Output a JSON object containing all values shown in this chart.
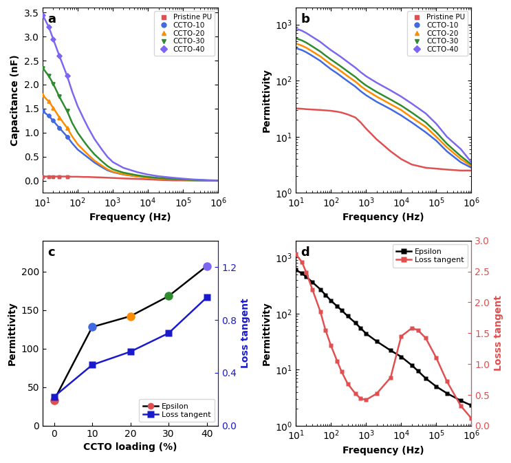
{
  "fig_width": 7.43,
  "fig_height": 6.73,
  "colors": {
    "pristine_pu": "#e05050",
    "ccto10": "#4169e1",
    "ccto20": "#ff8c00",
    "ccto30": "#2e8b2e",
    "ccto40": "#7b68ee",
    "epsilon_line": "#000000",
    "loss_tangent_c": "#1a1acd",
    "loss_tangent_d": "#e05050"
  },
  "panel_a": {
    "xlabel": "Frequency (Hz)",
    "ylabel": "Capacitance (nF)",
    "xlim": [
      10,
      1000000
    ],
    "ylim": [
      -0.25,
      3.6
    ],
    "freq": [
      10,
      15,
      20,
      30,
      50,
      70,
      100,
      150,
      200,
      300,
      500,
      700,
      1000,
      2000,
      5000,
      10000,
      20000,
      50000,
      100000,
      200000,
      500000,
      1000000
    ],
    "pristine_pu": [
      0.09,
      0.09,
      0.09,
      0.09,
      0.09,
      0.085,
      0.085,
      0.08,
      0.08,
      0.075,
      0.07,
      0.065,
      0.06,
      0.05,
      0.04,
      0.03,
      0.02,
      0.01,
      0.008,
      0.005,
      0.003,
      0.002
    ],
    "ccto10": [
      1.45,
      1.35,
      1.25,
      1.1,
      0.92,
      0.78,
      0.65,
      0.55,
      0.48,
      0.38,
      0.28,
      0.22,
      0.18,
      0.13,
      0.09,
      0.07,
      0.05,
      0.035,
      0.025,
      0.015,
      0.008,
      0.005
    ],
    "ccto20": [
      1.78,
      1.65,
      1.52,
      1.32,
      1.1,
      0.92,
      0.76,
      0.63,
      0.54,
      0.42,
      0.31,
      0.24,
      0.19,
      0.135,
      0.09,
      0.065,
      0.048,
      0.032,
      0.022,
      0.013,
      0.007,
      0.004
    ],
    "ccto30": [
      2.35,
      2.18,
      2.02,
      1.75,
      1.45,
      1.2,
      1.0,
      0.82,
      0.7,
      0.55,
      0.4,
      0.31,
      0.24,
      0.17,
      0.115,
      0.082,
      0.06,
      0.04,
      0.028,
      0.017,
      0.009,
      0.005
    ],
    "ccto40": [
      3.45,
      3.2,
      2.95,
      2.6,
      2.18,
      1.85,
      1.55,
      1.28,
      1.1,
      0.87,
      0.64,
      0.5,
      0.39,
      0.27,
      0.18,
      0.13,
      0.095,
      0.065,
      0.045,
      0.028,
      0.015,
      0.008
    ]
  },
  "panel_b": {
    "xlabel": "Frequency (Hz)",
    "ylabel": "Permittivity",
    "xlim": [
      10,
      1000000
    ],
    "ylim": [
      1.0,
      2000
    ],
    "freq": [
      10,
      15,
      20,
      30,
      50,
      70,
      100,
      150,
      200,
      300,
      500,
      700,
      1000,
      2000,
      5000,
      10000,
      20000,
      50000,
      100000,
      200000,
      500000,
      1000000
    ],
    "pristine_pu": [
      32,
      31.5,
      31,
      30.5,
      30,
      29.5,
      29,
      28,
      27,
      25,
      22,
      18,
      14,
      9,
      5.5,
      4.0,
      3.2,
      2.8,
      2.7,
      2.6,
      2.5,
      2.5
    ],
    "ccto10": [
      380,
      350,
      320,
      275,
      225,
      190,
      160,
      135,
      118,
      98,
      78,
      65,
      55,
      42,
      31,
      24,
      18,
      12,
      8.5,
      5.5,
      3.5,
      2.8
    ],
    "ccto20": [
      460,
      420,
      385,
      330,
      270,
      230,
      195,
      165,
      145,
      120,
      96,
      80,
      68,
      52,
      38,
      30,
      22,
      15,
      10,
      6.5,
      4.0,
      3.0
    ],
    "ccto30": [
      570,
      520,
      475,
      405,
      330,
      280,
      238,
      200,
      176,
      146,
      116,
      97,
      82,
      63,
      46,
      36,
      27,
      18,
      12,
      7.5,
      4.5,
      3.2
    ],
    "ccto40": [
      850,
      775,
      705,
      600,
      490,
      415,
      350,
      295,
      260,
      215,
      170,
      142,
      120,
      92,
      67,
      52,
      39,
      26,
      17,
      10,
      6.0,
      3.5
    ]
  },
  "panel_c": {
    "xlabel": "CCTO loading (%)",
    "ylabel": "Permittivity",
    "ylabel2": "Loss tangent",
    "x": [
      0,
      10,
      20,
      30,
      40
    ],
    "epsilon": [
      33,
      128,
      142,
      168,
      207
    ],
    "loss_tangent": [
      0.22,
      0.46,
      0.56,
      0.7,
      0.97
    ],
    "ep_colors": [
      "#e05050",
      "#4169e1",
      "#ff8c00",
      "#2e8b2e",
      "#7b68ee"
    ],
    "ylim_left": [
      0,
      240
    ],
    "ylim_right": [
      0.0,
      1.4
    ],
    "yticks_left": [
      0,
      50,
      100,
      150,
      200
    ],
    "yticks_right": [
      0.0,
      0.4,
      0.8,
      1.2
    ]
  },
  "panel_d": {
    "xlabel": "Frequency (Hz)",
    "ylabel": "Permittivity",
    "ylabel2": "Losss tangent",
    "xlim": [
      10,
      1000000
    ],
    "ylim_left": [
      1.0,
      2000
    ],
    "ylim_right": [
      0.0,
      3.0
    ],
    "freq": [
      10,
      15,
      20,
      30,
      50,
      70,
      100,
      150,
      200,
      300,
      500,
      700,
      1000,
      2000,
      5000,
      10000,
      20000,
      30000,
      50000,
      100000,
      200000,
      500000,
      1000000
    ],
    "epsilon": [
      600,
      520,
      450,
      360,
      270,
      215,
      170,
      135,
      115,
      90,
      68,
      55,
      44,
      32,
      22,
      17,
      12,
      9.5,
      7.0,
      5.0,
      3.8,
      2.8,
      2.3
    ],
    "loss_tangent": [
      2.78,
      2.65,
      2.48,
      2.2,
      1.85,
      1.55,
      1.3,
      1.05,
      0.88,
      0.68,
      0.52,
      0.44,
      0.42,
      0.52,
      0.78,
      1.45,
      1.58,
      1.55,
      1.42,
      1.1,
      0.72,
      0.32,
      0.12
    ]
  }
}
